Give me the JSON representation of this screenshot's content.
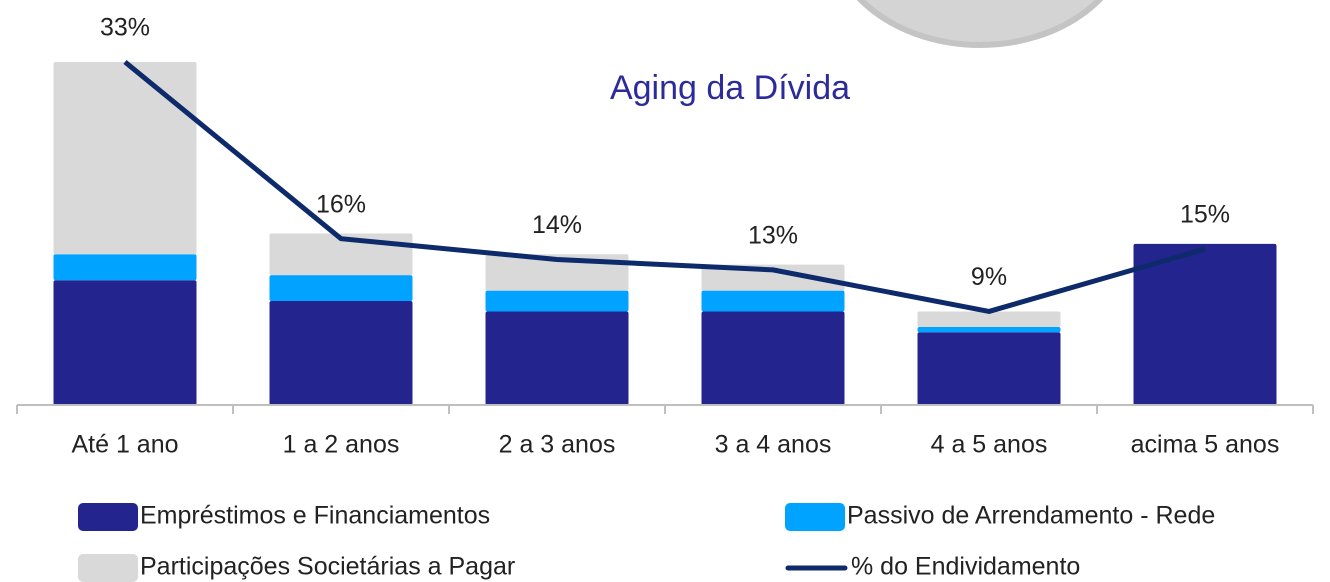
{
  "chart_data": {
    "type": "combo",
    "title": "Aging da Dívida",
    "categories": [
      "Até 1 ano",
      "1 a 2 anos",
      "2 a 3 anos",
      "3 a 4 anos",
      "4 a 5 anos",
      "acima 5 anos"
    ],
    "stacked": true,
    "legend": "bottom",
    "ylim": [
      0,
      38
    ],
    "series": [
      {
        "name": "Empréstimos e Financiamentos",
        "type": "bar",
        "color": "#24248f",
        "values": [
          12,
          10,
          9,
          9,
          7,
          15.5
        ]
      },
      {
        "name": "Passivo de Arrendamento - Rede",
        "type": "bar",
        "color": "#00a3ff",
        "values": [
          2.5,
          2.5,
          2,
          2,
          0.5,
          0
        ]
      },
      {
        "name": "Participações Societárias a Pagar",
        "type": "bar",
        "color": "#d9d9d9",
        "values": [
          18.5,
          4,
          3.5,
          2.5,
          1.5,
          0
        ]
      },
      {
        "name": "% do Endividamento",
        "type": "line",
        "color": "#0d2a6b",
        "values": [
          33,
          16,
          14,
          13,
          9,
          15
        ],
        "value_labels": [
          "33%",
          "16%",
          "14%",
          "13%",
          "9%",
          "15%"
        ]
      }
    ]
  }
}
